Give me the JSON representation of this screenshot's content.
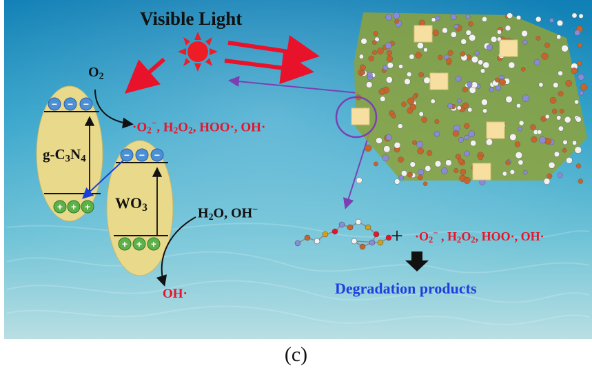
{
  "light": {
    "label": "Visible Light"
  },
  "catalyst1": {
    "name_pre": "g-C",
    "sub1": "3",
    "name_mid": "N",
    "sub2": "4",
    "vb_holes": [
      "+",
      "+",
      "+"
    ],
    "cb_electrons": [
      "−",
      "−",
      "−"
    ]
  },
  "catalyst2": {
    "name_pre": "WO",
    "sub1": "3",
    "vb_holes": [
      "+",
      "+",
      "+"
    ],
    "cb_electrons": [
      "−",
      "−",
      "−"
    ]
  },
  "reactant_o2": {
    "pre": "O",
    "sub": "2"
  },
  "ros_line": {
    "p1": "·O",
    "p1_sub": "2",
    "p1_sup": "−",
    "p2": ", H",
    "p2_sub1": "2",
    "p2_mid": "O",
    "p2_sub2": "2",
    "p3": ", HOO·, OH·"
  },
  "reactant_water": {
    "pre": "H",
    "sub": "2",
    "mid": "O, OH",
    "sup": "−"
  },
  "product_oh": {
    "label": "OH·"
  },
  "plus": "+",
  "ros_line2": {
    "p1": "·O",
    "p1_sub": "2",
    "p1_sup": "−",
    "p2": " , H",
    "p2_sub1": "2",
    "p2_mid": "O",
    "p2_sub2": "2",
    "p3": ", HOO·, OH·"
  },
  "degradation": {
    "label": "Degradation products"
  },
  "caption": "(c)",
  "colors": {
    "red": "#e8132a",
    "blue_text": "#1f3ee0",
    "band_fill": "#e9d98a",
    "electron": "#4b8fd6",
    "hole": "#5db148",
    "sheet": "#8a9a3c",
    "purple": "#7b3fb3"
  }
}
